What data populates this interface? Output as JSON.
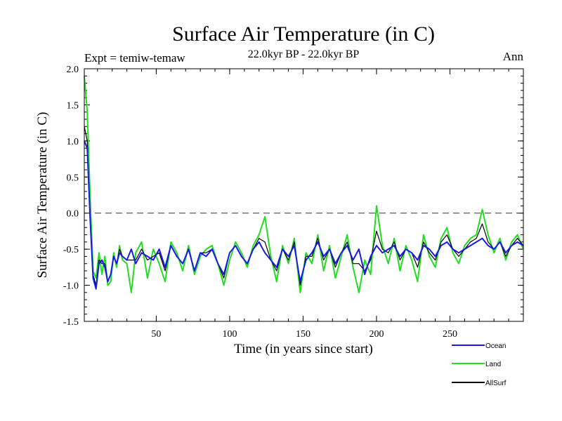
{
  "chart_data": {
    "type": "line",
    "title": "Surface Air Temperature (in C)",
    "subtitle": "22.0kyr BP - 22.0kyr BP",
    "experiment_label": "Expt = temiw-temaw",
    "season_label": "Ann",
    "xlabel": "Time (in years since start)",
    "ylabel": "Surface Air Temperature (in C)",
    "xlim": [
      1,
      300
    ],
    "ylim": [
      -1.5,
      2.0
    ],
    "x_ticks": [
      50,
      100,
      150,
      200,
      250
    ],
    "y_ticks": [
      -1.5,
      -1.0,
      -0.5,
      0.0,
      0.5,
      1.0,
      1.5,
      2.0
    ],
    "y_tick_labels": [
      "-1.5",
      "-1.0",
      "-0.5",
      "0.0",
      "0.5",
      "1.0",
      "1.5",
      "2.0"
    ],
    "reference_line": 0.0,
    "series": [
      {
        "name": "Ocean",
        "color": "#1a1ae6",
        "x": [
          1,
          3,
          5,
          7,
          9,
          11,
          13,
          15,
          17,
          19,
          21,
          23,
          25,
          27,
          30,
          33,
          36,
          40,
          44,
          48,
          52,
          56,
          60,
          64,
          68,
          72,
          76,
          80,
          84,
          88,
          92,
          96,
          100,
          104,
          108,
          112,
          116,
          120,
          124,
          128,
          132,
          136,
          140,
          144,
          148,
          152,
          156,
          160,
          164,
          168,
          172,
          176,
          180,
          184,
          188,
          192,
          196,
          200,
          204,
          208,
          212,
          216,
          220,
          224,
          228,
          232,
          236,
          240,
          244,
          248,
          252,
          256,
          260,
          264,
          268,
          272,
          276,
          280,
          284,
          288,
          292,
          296,
          300
        ],
        "values": [
          1.0,
          0.9,
          -0.1,
          -0.9,
          -1.05,
          -0.7,
          -0.65,
          -0.75,
          -0.95,
          -0.85,
          -0.6,
          -0.7,
          -0.55,
          -0.6,
          -0.65,
          -0.5,
          -0.7,
          -0.55,
          -0.6,
          -0.65,
          -0.5,
          -0.75,
          -0.45,
          -0.6,
          -0.7,
          -0.5,
          -0.8,
          -0.55,
          -0.6,
          -0.5,
          -0.7,
          -0.85,
          -0.55,
          -0.45,
          -0.6,
          -0.7,
          -0.5,
          -0.4,
          -0.55,
          -0.65,
          -0.75,
          -0.5,
          -0.6,
          -0.45,
          -0.95,
          -0.65,
          -0.55,
          -0.4,
          -0.6,
          -0.5,
          -0.7,
          -0.55,
          -0.45,
          -0.65,
          -0.5,
          -0.85,
          -0.6,
          -0.45,
          -0.55,
          -0.5,
          -0.45,
          -0.6,
          -0.5,
          -0.55,
          -0.65,
          -0.45,
          -0.5,
          -0.6,
          -0.45,
          -0.4,
          -0.5,
          -0.55,
          -0.5,
          -0.45,
          -0.4,
          -0.35,
          -0.45,
          -0.5,
          -0.4,
          -0.55,
          -0.45,
          -0.4,
          -0.45
        ]
      },
      {
        "name": "Land",
        "color": "#22dd22",
        "x": [
          1,
          3,
          5,
          7,
          9,
          11,
          13,
          15,
          17,
          19,
          21,
          23,
          25,
          27,
          30,
          33,
          36,
          40,
          44,
          48,
          52,
          56,
          60,
          64,
          68,
          72,
          76,
          80,
          84,
          88,
          92,
          96,
          100,
          104,
          108,
          112,
          116,
          120,
          124,
          128,
          132,
          136,
          140,
          144,
          148,
          152,
          156,
          160,
          164,
          168,
          172,
          176,
          180,
          184,
          188,
          192,
          196,
          200,
          204,
          208,
          212,
          216,
          220,
          224,
          228,
          232,
          236,
          240,
          244,
          248,
          252,
          256,
          260,
          264,
          268,
          272,
          276,
          280,
          284,
          288,
          292,
          296,
          300
        ],
        "values": [
          1.9,
          1.4,
          0.2,
          -0.8,
          -0.9,
          -0.55,
          -0.85,
          -0.6,
          -1.0,
          -0.95,
          -0.55,
          -0.75,
          -0.45,
          -0.65,
          -0.7,
          -1.1,
          -0.55,
          -0.4,
          -0.9,
          -0.5,
          -0.7,
          -0.95,
          -0.4,
          -0.55,
          -0.8,
          -0.45,
          -0.85,
          -0.6,
          -0.5,
          -0.45,
          -0.7,
          -1.0,
          -0.65,
          -0.4,
          -0.55,
          -0.75,
          -0.45,
          -0.3,
          -0.05,
          -0.6,
          -0.95,
          -0.45,
          -0.7,
          -0.35,
          -1.1,
          -0.55,
          -0.7,
          -0.3,
          -0.8,
          -0.45,
          -0.9,
          -0.6,
          -0.3,
          -0.75,
          -1.1,
          -0.65,
          -0.85,
          0.1,
          -0.45,
          -0.7,
          -0.35,
          -0.8,
          -0.45,
          -0.65,
          -0.95,
          -0.3,
          -0.6,
          -0.75,
          -0.35,
          -0.2,
          -0.55,
          -0.7,
          -0.45,
          -0.35,
          -0.3,
          0.05,
          -0.3,
          -0.55,
          -0.35,
          -0.65,
          -0.4,
          -0.3,
          -0.5
        ]
      },
      {
        "name": "AllSurf",
        "color": "#000000",
        "x": [
          1,
          3,
          5,
          7,
          9,
          11,
          13,
          15,
          17,
          19,
          21,
          23,
          25,
          27,
          30,
          33,
          36,
          40,
          44,
          48,
          52,
          56,
          60,
          64,
          68,
          72,
          76,
          80,
          84,
          88,
          92,
          96,
          100,
          104,
          108,
          112,
          116,
          120,
          124,
          128,
          132,
          136,
          140,
          144,
          148,
          152,
          156,
          160,
          164,
          168,
          172,
          176,
          180,
          184,
          188,
          192,
          196,
          200,
          204,
          208,
          212,
          216,
          220,
          224,
          228,
          232,
          236,
          240,
          244,
          248,
          252,
          256,
          260,
          264,
          268,
          272,
          276,
          280,
          284,
          288,
          292,
          296,
          300
        ],
        "values": [
          1.2,
          1.0,
          -0.05,
          -0.85,
          -1.0,
          -0.65,
          -0.7,
          -0.7,
          -0.95,
          -0.85,
          -0.6,
          -0.7,
          -0.5,
          -0.6,
          -0.65,
          -0.65,
          -0.65,
          -0.5,
          -0.65,
          -0.6,
          -0.55,
          -0.8,
          -0.45,
          -0.6,
          -0.7,
          -0.5,
          -0.8,
          -0.55,
          -0.55,
          -0.5,
          -0.7,
          -0.9,
          -0.55,
          -0.45,
          -0.6,
          -0.7,
          -0.5,
          -0.35,
          -0.4,
          -0.65,
          -0.8,
          -0.5,
          -0.65,
          -0.4,
          -1.0,
          -0.6,
          -0.6,
          -0.35,
          -0.65,
          -0.5,
          -0.75,
          -0.55,
          -0.4,
          -0.7,
          -0.7,
          -0.8,
          -0.65,
          -0.25,
          -0.5,
          -0.55,
          -0.4,
          -0.65,
          -0.5,
          -0.55,
          -0.75,
          -0.4,
          -0.55,
          -0.65,
          -0.4,
          -0.3,
          -0.5,
          -0.6,
          -0.5,
          -0.4,
          -0.35,
          -0.15,
          -0.4,
          -0.5,
          -0.4,
          -0.6,
          -0.45,
          -0.35,
          -0.45
        ]
      }
    ]
  }
}
